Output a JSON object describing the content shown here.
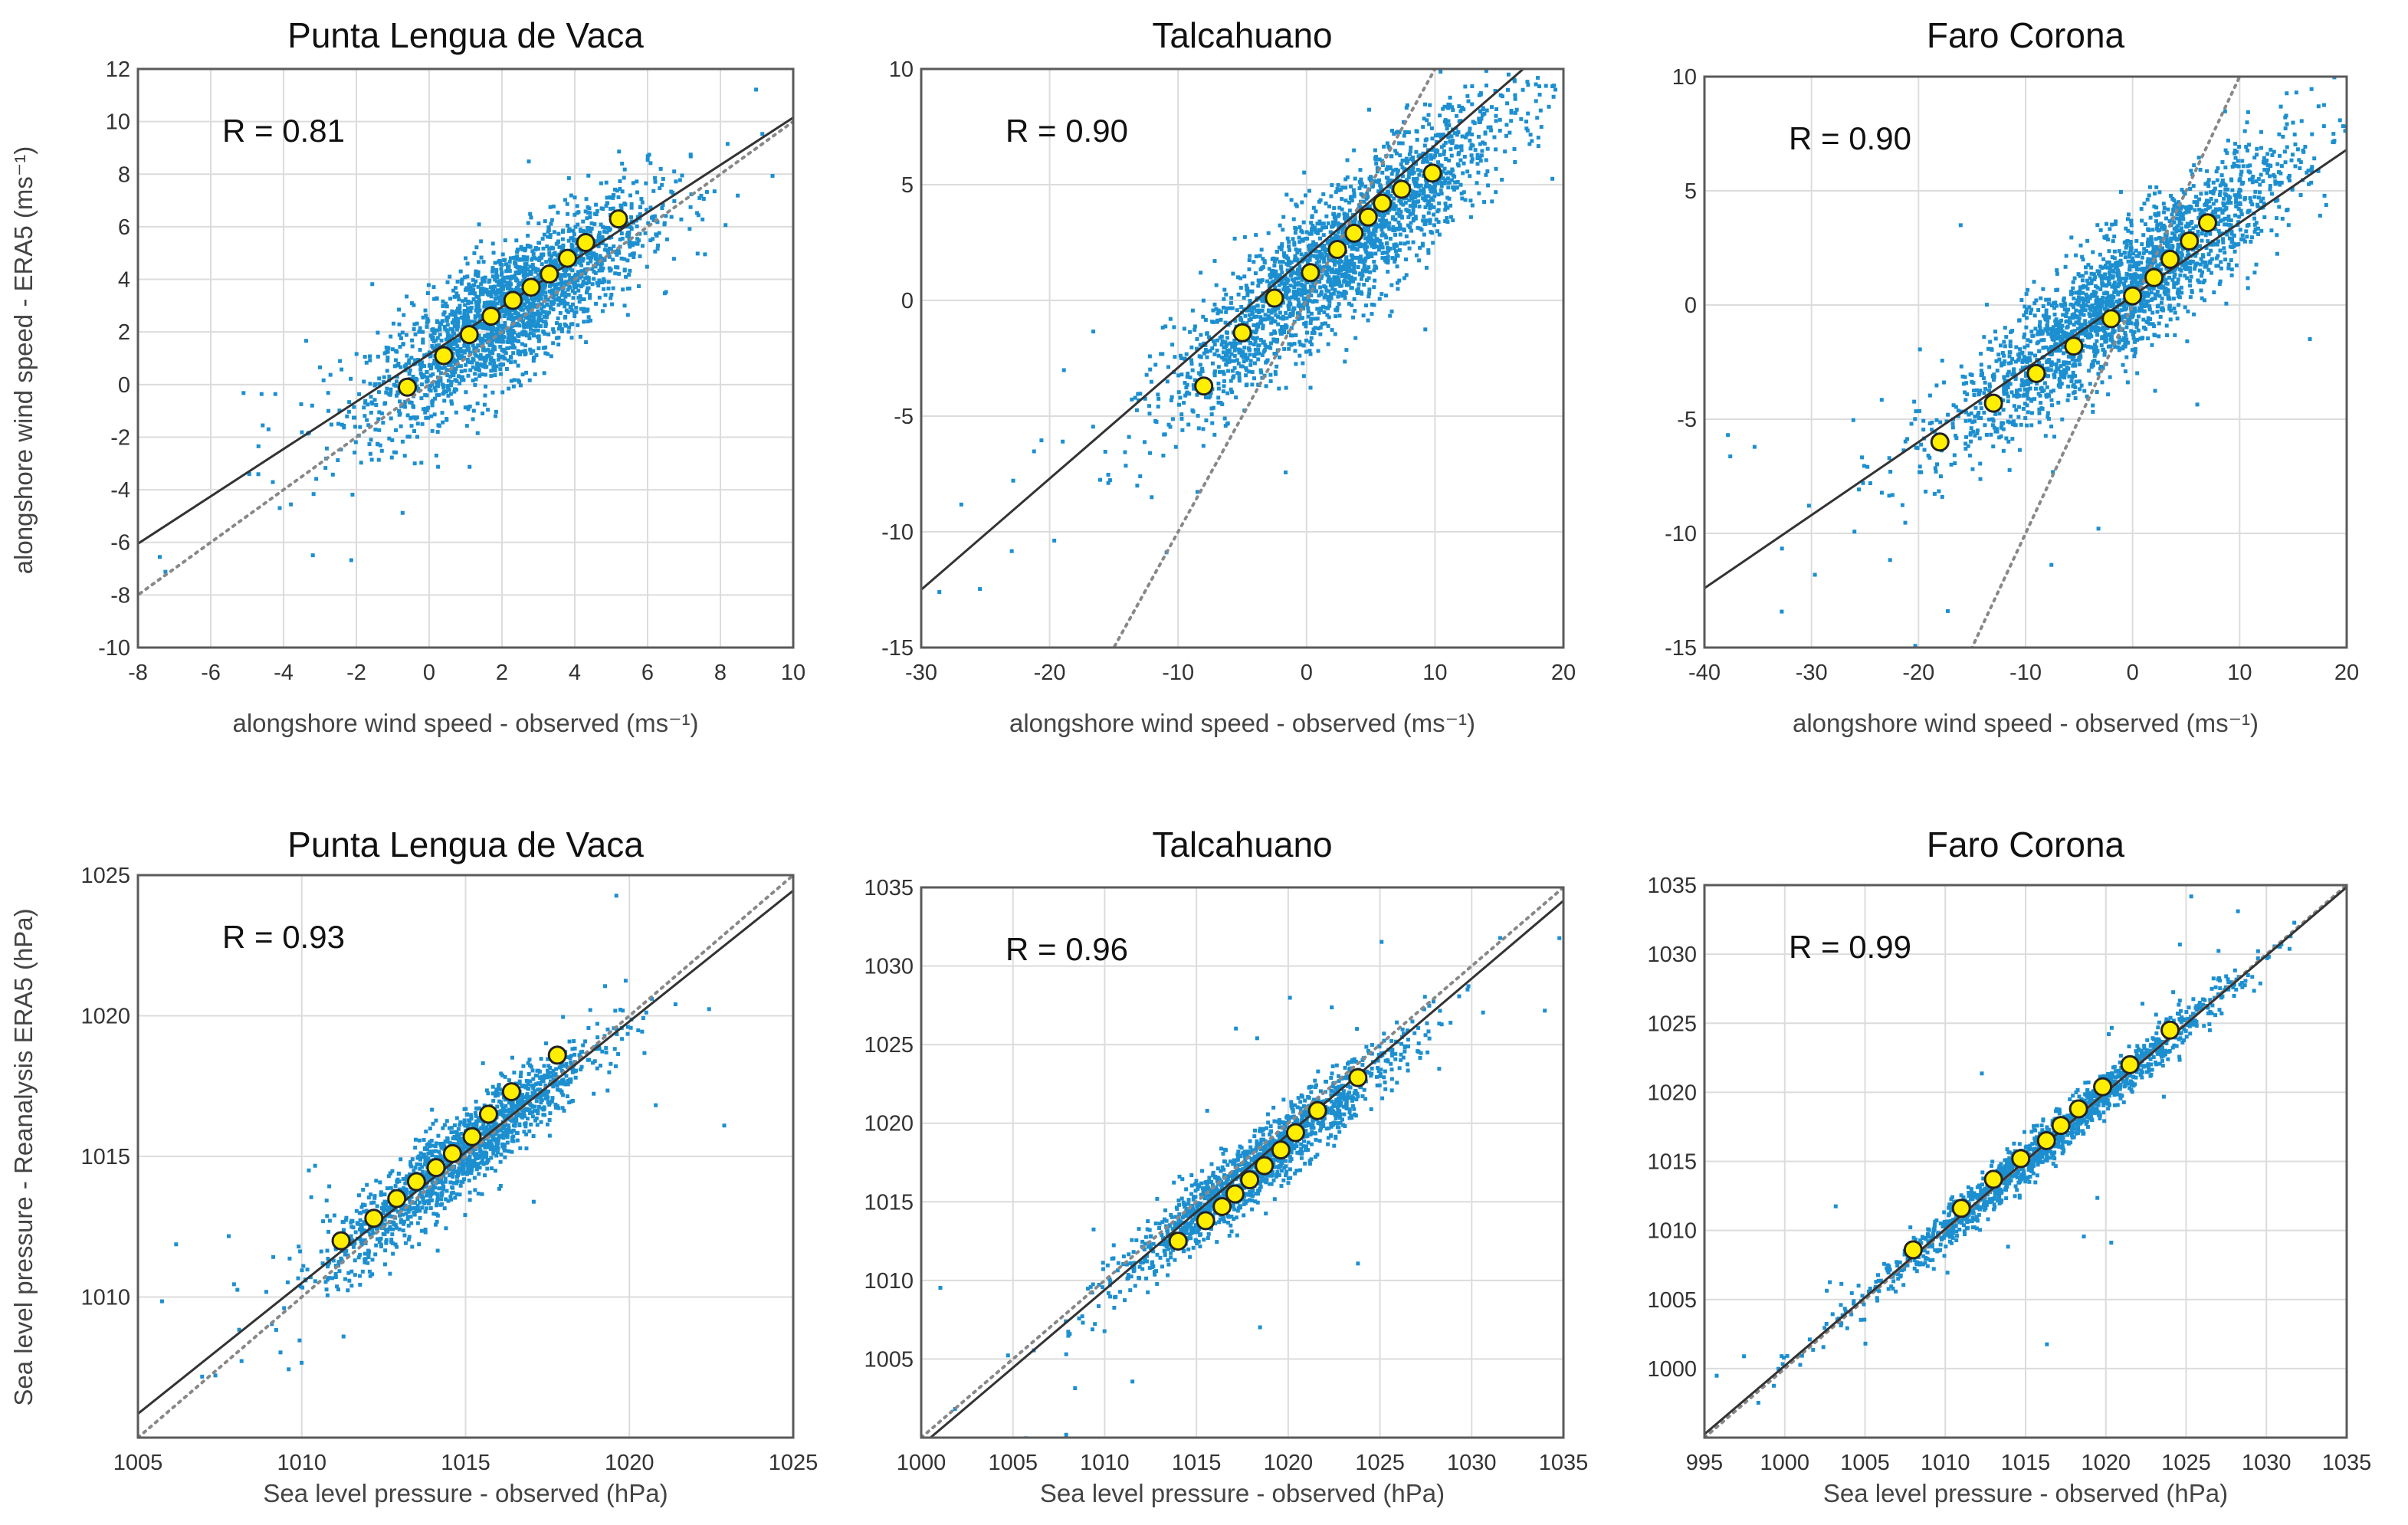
{
  "chart_data": [
    {
      "type": "scatter",
      "title": "Punta Lengua de Vaca",
      "xlabel": "alongshore wind speed - observed (ms⁻¹)",
      "ylabel": "alongshore wind speed - ERA5 (ms⁻¹)",
      "xlim": [
        -8,
        10
      ],
      "ylim": [
        -10,
        12
      ],
      "xticks": [
        -8,
        -6,
        -4,
        -2,
        0,
        2,
        4,
        6,
        8,
        10
      ],
      "yticks": [
        -10,
        -8,
        -6,
        -4,
        -2,
        0,
        2,
        4,
        6,
        8,
        10,
        12
      ],
      "annotation": "R = 0.81",
      "scatter_center": [
        2.2,
        2.8
      ],
      "scatter_spread": [
        1.9,
        2.1
      ],
      "scatter_corr": 0.81,
      "regression_line": {
        "slope": 0.9,
        "intercept": 1.15
      },
      "one_to_one_line": true,
      "bin_means": {
        "x": [
          -0.6,
          0.4,
          1.1,
          1.7,
          2.3,
          2.8,
          3.3,
          3.8,
          4.3,
          5.2
        ],
        "y": [
          -0.1,
          1.1,
          1.9,
          2.6,
          3.2,
          3.7,
          4.2,
          4.8,
          5.4,
          6.3
        ]
      }
    },
    {
      "type": "scatter",
      "title": "Talcahuano",
      "xlabel": "alongshore wind speed - observed (ms⁻¹)",
      "ylabel": "",
      "xlim": [
        -30,
        20
      ],
      "ylim": [
        -15,
        10
      ],
      "xticks": [
        -30,
        -20,
        -10,
        0,
        10,
        20
      ],
      "yticks": [
        -15,
        -10,
        -5,
        0,
        5,
        10
      ],
      "annotation": "R = 0.90",
      "scatter_center": [
        2.5,
        2.0
      ],
      "scatter_spread": [
        6.5,
        3.3
      ],
      "scatter_corr": 0.9,
      "regression_line": {
        "slope": 0.48,
        "intercept": 1.9
      },
      "one_to_one_line": true,
      "bin_means": {
        "x": [
          -8,
          -5,
          -2.5,
          0.3,
          2.4,
          3.7,
          4.8,
          5.9,
          7.4,
          9.8
        ],
        "y": [
          -3.7,
          -1.4,
          0.1,
          1.2,
          2.2,
          2.9,
          3.6,
          4.2,
          4.8,
          5.5
        ]
      }
    },
    {
      "type": "scatter",
      "title": "Faro Corona",
      "xlabel": "alongshore wind speed - observed (ms⁻¹)",
      "ylabel": "",
      "xlim": [
        -40,
        20
      ],
      "ylim": [
        -15,
        10
      ],
      "xticks": [
        -40,
        -30,
        -20,
        -10,
        0,
        10,
        20
      ],
      "yticks": [
        -15,
        -10,
        -5,
        0,
        5,
        10
      ],
      "annotation": "R = 0.90",
      "scatter_center": [
        -1.0,
        0.4
      ],
      "scatter_spread": [
        8.0,
        3.2
      ],
      "scatter_corr": 0.9,
      "regression_line": {
        "slope": 0.32,
        "intercept": 0.4
      },
      "one_to_one_line": true,
      "bin_means": {
        "x": [
          -18,
          -13,
          -9,
          -5.5,
          -2,
          0,
          2,
          3.5,
          5.3,
          7
        ],
        "y": [
          -6.0,
          -4.3,
          -3.0,
          -1.8,
          -0.6,
          0.4,
          1.2,
          2.0,
          2.8,
          3.6
        ]
      }
    },
    {
      "type": "scatter",
      "title": "Punta Lengua de Vaca",
      "xlabel": "Sea level pressure - observed (hPa)",
      "ylabel": "Sea level pressure - Reanalysis ERA5 (hPa)",
      "xlim": [
        1005,
        1025
      ],
      "ylim": [
        1005,
        1025
      ],
      "xticks": [
        1005,
        1010,
        1015,
        1020,
        1025
      ],
      "yticks": [
        1010,
        1015,
        1020,
        1025
      ],
      "annotation": "R = 0.93",
      "scatter_center": [
        1014.8,
        1015.0
      ],
      "scatter_spread": [
        2.0,
        2.0
      ],
      "scatter_corr": 0.93,
      "regression_line": {
        "slope": 0.93,
        "intercept": 71.2
      },
      "one_to_one_line": true,
      "bin_means": {
        "x": [
          1011.2,
          1012.2,
          1012.9,
          1013.5,
          1014.1,
          1014.6,
          1015.2,
          1015.7,
          1016.4,
          1017.8
        ],
        "y": [
          1012.0,
          1012.8,
          1013.5,
          1014.1,
          1014.6,
          1015.1,
          1015.7,
          1016.5,
          1017.3,
          1018.6
        ]
      }
    },
    {
      "type": "scatter",
      "title": "Talcahuano",
      "xlabel": "Sea level pressure - observed (hPa)",
      "ylabel": "",
      "xlim": [
        1000,
        1035
      ],
      "ylim": [
        1000,
        1035
      ],
      "xticks": [
        1000,
        1005,
        1010,
        1015,
        1020,
        1025,
        1030,
        1035
      ],
      "yticks": [
        1005,
        1010,
        1015,
        1020,
        1025,
        1030,
        1035
      ],
      "annotation": "R = 0.96",
      "scatter_center": [
        1018.5,
        1017.5
      ],
      "scatter_spread": [
        3.8,
        3.7
      ],
      "scatter_corr": 0.96,
      "regression_line": {
        "slope": 0.99,
        "intercept": 9.5
      },
      "one_to_one_line": true,
      "bin_means": {
        "x": [
          1014,
          1015.5,
          1016.4,
          1017.1,
          1017.9,
          1018.7,
          1019.6,
          1020.4,
          1021.6,
          1023.8
        ],
        "y": [
          1012.5,
          1013.8,
          1014.7,
          1015.5,
          1016.4,
          1017.3,
          1018.3,
          1019.4,
          1020.8,
          1022.9
        ]
      }
    },
    {
      "type": "scatter",
      "title": "Faro Corona",
      "xlabel": "Sea level pressure - observed (hPa)",
      "ylabel": "",
      "xlim": [
        995,
        1035
      ],
      "ylim": [
        995,
        1035
      ],
      "xticks": [
        995,
        1000,
        1005,
        1010,
        1015,
        1020,
        1025,
        1030,
        1035
      ],
      "yticks": [
        1000,
        1005,
        1010,
        1015,
        1020,
        1025,
        1030,
        1035
      ],
      "annotation": "R = 0.99",
      "scatter_center": [
        1016.5,
        1016.5
      ],
      "scatter_spread": [
        5.5,
        5.5
      ],
      "scatter_corr": 0.99,
      "regression_line": {
        "slope": 0.99,
        "intercept": 10.2
      },
      "one_to_one_line": true,
      "bin_means": {
        "x": [
          1008,
          1011,
          1013,
          1014.7,
          1016.3,
          1017.2,
          1018.3,
          1019.8,
          1021.5,
          1024
        ],
        "y": [
          1008.6,
          1011.6,
          1013.7,
          1015.2,
          1016.5,
          1017.6,
          1018.8,
          1020.4,
          1022.0,
          1024.5
        ]
      }
    }
  ]
}
